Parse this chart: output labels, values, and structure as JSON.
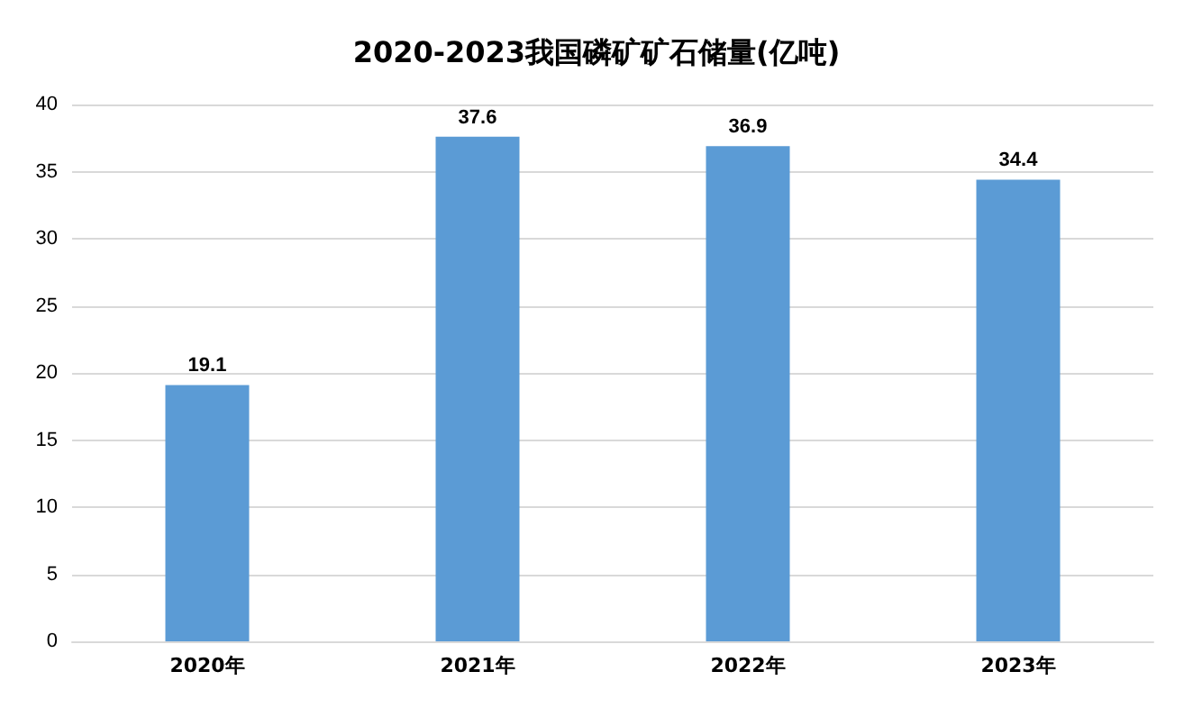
{
  "chart_data": {
    "type": "bar",
    "title": "2020-2023我国磷矿矿石储量(亿吨)",
    "categories": [
      "2020年",
      "2021年",
      "2022年",
      "2023年"
    ],
    "values": [
      19.1,
      37.6,
      36.9,
      34.4
    ],
    "color": "#5b9bd5",
    "ylim": [
      0,
      40
    ],
    "yticks": [
      0,
      5,
      10,
      15,
      20,
      25,
      30,
      35,
      40
    ],
    "grid": "y",
    "data_labels": true
  }
}
